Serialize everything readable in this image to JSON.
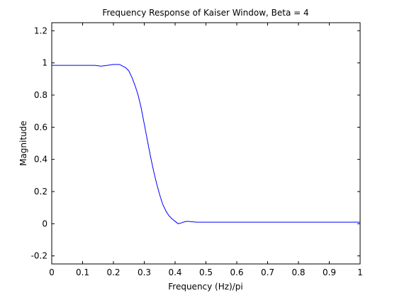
{
  "chart_data": {
    "type": "line",
    "title": "Frequency Response of Kaiser Window, Beta = 4",
    "xlabel": "Frequency (Hz)/pi",
    "ylabel": "Magnitude",
    "xlim": [
      0,
      1
    ],
    "ylim": [
      -0.25,
      1.25
    ],
    "grid": false,
    "xticks": [
      0,
      0.1,
      0.2,
      0.3,
      0.4,
      0.5,
      0.6,
      0.7,
      0.8,
      0.9,
      1
    ],
    "xtick_labels": [
      "0",
      "0.1",
      "0.2",
      "0.3",
      "0.4",
      "0.5",
      "0.6",
      "0.7",
      "0.8",
      "0.9",
      "1"
    ],
    "yticks": [
      -0.2,
      0,
      0.2,
      0.4,
      0.6,
      0.8,
      1,
      1.2
    ],
    "ytick_labels": [
      "-0.2",
      "0",
      "0.2",
      "0.4",
      "0.6",
      "0.8",
      "1",
      "1.2"
    ],
    "series": [
      {
        "color": "#0000ff",
        "x": [
          0,
          0.05,
          0.1,
          0.14,
          0.16,
          0.18,
          0.2,
          0.22,
          0.24,
          0.25,
          0.26,
          0.27,
          0.28,
          0.29,
          0.3,
          0.31,
          0.32,
          0.33,
          0.34,
          0.35,
          0.36,
          0.37,
          0.38,
          0.39,
          0.4,
          0.41,
          0.42,
          0.43,
          0.44,
          0.45,
          0.47,
          0.5,
          0.6,
          0.7,
          0.8,
          0.9,
          1
        ],
        "y": [
          0.985,
          0.985,
          0.985,
          0.985,
          0.98,
          0.985,
          0.99,
          0.99,
          0.97,
          0.95,
          0.91,
          0.86,
          0.8,
          0.72,
          0.62,
          0.52,
          0.42,
          0.33,
          0.25,
          0.18,
          0.12,
          0.08,
          0.05,
          0.03,
          0.015,
          0.0,
          0.005,
          0.012,
          0.015,
          0.013,
          0.01,
          0.01,
          0.01,
          0.01,
          0.01,
          0.01,
          0.01
        ]
      }
    ]
  }
}
